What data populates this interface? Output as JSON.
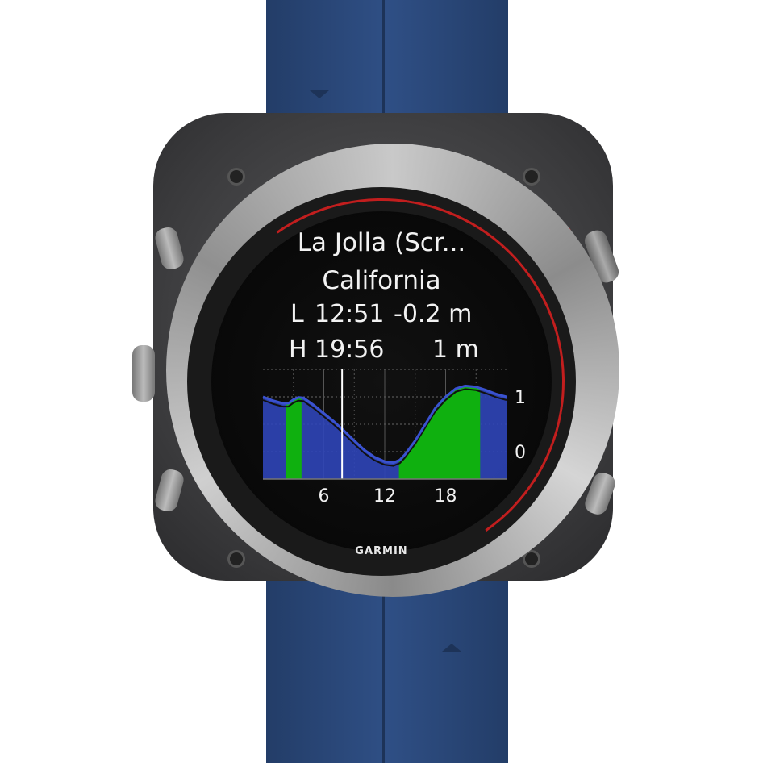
{
  "watch": {
    "brand": "GARMIN",
    "band_color": "#2f4f85",
    "accent_red": "#c21e1e"
  },
  "tide": {
    "location": "La Jolla (Scr...",
    "region": "California",
    "low": {
      "label": "L",
      "time": "12:51",
      "height": "-0.2 m"
    },
    "high": {
      "label": "H",
      "time": "19:56",
      "height": "1 m"
    }
  },
  "chart_data": {
    "type": "area",
    "x_ticks": [
      "6",
      "12",
      "18"
    ],
    "y_ticks": [
      "1",
      "0"
    ],
    "xlim": [
      0,
      24
    ],
    "ylim": [
      -0.5,
      1.5
    ],
    "grid": true,
    "current_time_hour": 7.8,
    "series_color": "#2f45b8",
    "highlight_color": "#0fb00f",
    "highlight_ranges": [
      [
        2.3,
        3.8
      ],
      [
        13.4,
        21.4
      ]
    ],
    "x": [
      0,
      1,
      2,
      2.5,
      3,
      3.5,
      4,
      5,
      6,
      7,
      8,
      9,
      10,
      11,
      12,
      12.85,
      13.5,
      14,
      15,
      16,
      17,
      18,
      19,
      19.93,
      21,
      22,
      23,
      24
    ],
    "y": [
      1.0,
      0.93,
      0.88,
      0.88,
      0.95,
      0.99,
      0.98,
      0.85,
      0.7,
      0.55,
      0.38,
      0.2,
      0.03,
      -0.1,
      -0.18,
      -0.2,
      -0.15,
      -0.05,
      0.2,
      0.5,
      0.8,
      1.0,
      1.15,
      1.2,
      1.18,
      1.12,
      1.05,
      1.0
    ]
  }
}
